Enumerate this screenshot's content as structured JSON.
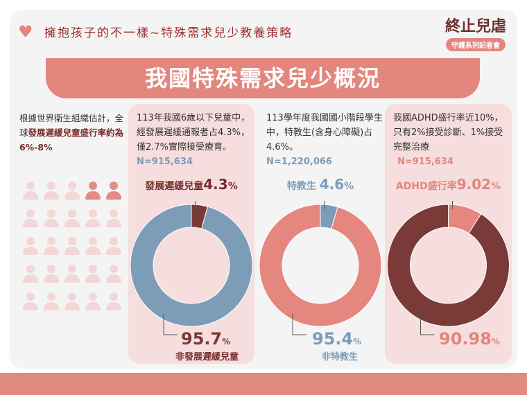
{
  "header": {
    "subtitle": "擁抱孩子的不一樣~特殊需求兒少教養策略",
    "logo_title": "終止兒虐",
    "logo_sub": "守護系列記者會",
    "banner": "我國特殊需求兒少概況"
  },
  "col1": {
    "text_a": "根據世界衛生組織估計，全球",
    "text_hl": "發展遲緩兒童盛行率約為6%-8%",
    "icons_total": 25,
    "icons_highlighted": 2,
    "colors": {
      "highlight": "#e38b85",
      "normal": "#f3d6d6"
    }
  },
  "chart_data": [
    {
      "type": "pie",
      "title": "發展遲緩兒童",
      "description": "113年我國6歲以下兒童中，經發展遲緩通報者占4.3%，僅2.7%實際接受療育。",
      "n": "N=915,634",
      "slices": [
        {
          "label": "發展遲緩兒童",
          "value": 4.3,
          "display": "4.3",
          "color": "#7a3a38"
        },
        {
          "label": "非發展遲緩兒童",
          "value": 95.7,
          "display": "95.7",
          "color": "#7d9cb8"
        }
      ]
    },
    {
      "type": "pie",
      "title": "特教生",
      "description": "113學年度我國國小階段學生中，特教生(含身心障礙)占4.6%。",
      "n": "N=1,220,066",
      "slices": [
        {
          "label": "特教生",
          "value": 4.6,
          "display": "4.6",
          "color": "#7d9cb8"
        },
        {
          "label": "非特教生",
          "value": 95.4,
          "display": "95.4",
          "color": "#e5877f"
        }
      ]
    },
    {
      "type": "pie",
      "title": "ADHD盛行率",
      "description": "我國ADHD盛行率近10%，只有2%接受診斷、1%接受完整治療",
      "n": "N=915,634",
      "slices": [
        {
          "label": "ADHD盛行率",
          "value": 9.02,
          "display": "9.02",
          "color": "#e5877f"
        },
        {
          "label": "",
          "value": 90.98,
          "display": "90.98",
          "color": "#7a3a38"
        }
      ]
    }
  ],
  "pct": "%"
}
